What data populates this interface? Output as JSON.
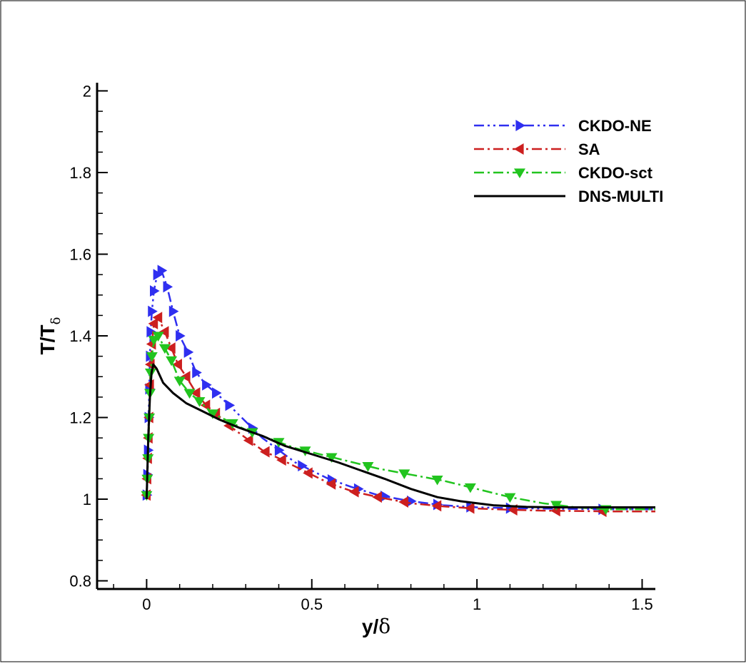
{
  "chart_data": {
    "type": "line",
    "title": "",
    "xlabel": {
      "main": "y/",
      "symbol": "δ"
    },
    "ylabel": {
      "main": "T/T",
      "subscript": "δ"
    },
    "xlim": [
      -0.15,
      1.54
    ],
    "ylim": [
      0.78,
      2.02
    ],
    "x_ticks": [
      0,
      0.5,
      1,
      1.5
    ],
    "x_tick_labels": [
      "0",
      "0.5",
      "1",
      "1.5"
    ],
    "y_ticks": [
      0.8,
      1,
      1.2,
      1.4,
      1.6,
      1.8,
      2
    ],
    "y_tick_labels": [
      "0.8",
      "1",
      "1.2",
      "1.4",
      "1.6",
      "1.8",
      "2"
    ],
    "legend_position": "top-right",
    "series": [
      {
        "name": "CKDO-NE",
        "color": "#2f2ff0",
        "dash": "dashdotdot",
        "marker": "triangle-right",
        "x": [
          0.0,
          0.002,
          0.004,
          0.006,
          0.008,
          0.01,
          0.012,
          0.016,
          0.022,
          0.032,
          0.045,
          0.062,
          0.08,
          0.1,
          0.125,
          0.15,
          0.18,
          0.21,
          0.25,
          0.3,
          0.35,
          0.4,
          0.45,
          0.5,
          0.55,
          0.62,
          0.7,
          0.8,
          0.9,
          1.0,
          1.1,
          1.2,
          1.3,
          1.4,
          1.54
        ],
        "y": [
          1.01,
          1.06,
          1.12,
          1.2,
          1.27,
          1.35,
          1.41,
          1.46,
          1.51,
          1.55,
          1.56,
          1.52,
          1.46,
          1.4,
          1.36,
          1.31,
          1.28,
          1.26,
          1.23,
          1.19,
          1.15,
          1.12,
          1.09,
          1.07,
          1.05,
          1.03,
          1.01,
          0.995,
          0.985,
          0.98,
          0.978,
          0.977,
          0.976,
          0.975,
          0.975
        ],
        "marker_x": [
          0.0,
          0.002,
          0.004,
          0.006,
          0.008,
          0.01,
          0.012,
          0.016,
          0.022,
          0.032,
          0.045,
          0.062,
          0.08,
          0.1,
          0.125,
          0.15,
          0.18,
          0.21,
          0.25,
          0.32,
          0.4,
          0.47,
          0.56,
          0.64,
          0.72,
          0.8,
          0.88,
          0.98,
          1.1,
          1.38
        ]
      },
      {
        "name": "SA",
        "color": "#cc1f1f",
        "dash": "dashdot",
        "marker": "triangle-left",
        "x": [
          0.0,
          0.002,
          0.004,
          0.006,
          0.008,
          0.01,
          0.012,
          0.016,
          0.022,
          0.035,
          0.055,
          0.075,
          0.095,
          0.12,
          0.15,
          0.18,
          0.21,
          0.25,
          0.3,
          0.35,
          0.4,
          0.45,
          0.5,
          0.55,
          0.62,
          0.7,
          0.8,
          0.9,
          1.0,
          1.1,
          1.2,
          1.3,
          1.4,
          1.54
        ],
        "y": [
          1.01,
          1.05,
          1.1,
          1.15,
          1.2,
          1.28,
          1.33,
          1.38,
          1.43,
          1.445,
          1.41,
          1.37,
          1.33,
          1.3,
          1.26,
          1.23,
          1.21,
          1.18,
          1.15,
          1.12,
          1.1,
          1.08,
          1.06,
          1.04,
          1.02,
          1.005,
          0.99,
          0.982,
          0.977,
          0.974,
          0.972,
          0.971,
          0.97,
          0.97
        ],
        "marker_x": [
          0.0,
          0.002,
          0.004,
          0.006,
          0.008,
          0.01,
          0.012,
          0.016,
          0.022,
          0.035,
          0.055,
          0.075,
          0.095,
          0.12,
          0.15,
          0.18,
          0.21,
          0.25,
          0.31,
          0.36,
          0.41,
          0.49,
          0.56,
          0.63,
          0.7,
          0.78,
          0.88,
          0.98,
          1.11,
          1.24,
          1.38
        ]
      },
      {
        "name": "CKDO-sct",
        "color": "#22c41f",
        "dash": "dashdot",
        "marker": "triangle-down",
        "x": [
          0.0,
          0.002,
          0.004,
          0.006,
          0.008,
          0.01,
          0.012,
          0.016,
          0.022,
          0.035,
          0.055,
          0.075,
          0.1,
          0.13,
          0.16,
          0.2,
          0.25,
          0.3,
          0.35,
          0.4,
          0.45,
          0.5,
          0.6,
          0.7,
          0.8,
          0.9,
          1.0,
          1.1,
          1.2,
          1.3,
          1.4,
          1.54
        ],
        "y": [
          1.01,
          1.05,
          1.1,
          1.15,
          1.2,
          1.26,
          1.31,
          1.35,
          1.39,
          1.4,
          1.37,
          1.34,
          1.29,
          1.26,
          1.24,
          1.21,
          1.19,
          1.17,
          1.155,
          1.14,
          1.125,
          1.115,
          1.095,
          1.075,
          1.06,
          1.045,
          1.025,
          1.005,
          0.99,
          0.98,
          0.975,
          0.975
        ],
        "marker_x": [
          0.0,
          0.002,
          0.004,
          0.006,
          0.008,
          0.01,
          0.012,
          0.016,
          0.022,
          0.035,
          0.055,
          0.075,
          0.1,
          0.13,
          0.16,
          0.2,
          0.26,
          0.32,
          0.4,
          0.48,
          0.56,
          0.67,
          0.78,
          0.88,
          0.98,
          1.1,
          1.24,
          1.39
        ]
      },
      {
        "name": "DNS-MULTI",
        "color": "#000000",
        "dash": "solid",
        "marker": "none",
        "x": [
          0.0,
          0.005,
          0.01,
          0.015,
          0.02,
          0.03,
          0.05,
          0.08,
          0.12,
          0.17,
          0.22,
          0.28,
          0.35,
          0.42,
          0.5,
          0.58,
          0.65,
          0.72,
          0.8,
          0.88,
          0.95,
          1.0,
          1.05,
          1.1,
          1.15,
          1.25,
          1.35,
          1.54
        ],
        "y": [
          1.0,
          1.15,
          1.25,
          1.31,
          1.33,
          1.32,
          1.285,
          1.26,
          1.235,
          1.215,
          1.195,
          1.175,
          1.155,
          1.13,
          1.11,
          1.09,
          1.07,
          1.05,
          1.025,
          1.005,
          0.995,
          0.99,
          0.985,
          0.983,
          0.981,
          0.98,
          0.98,
          0.98
        ]
      }
    ]
  }
}
